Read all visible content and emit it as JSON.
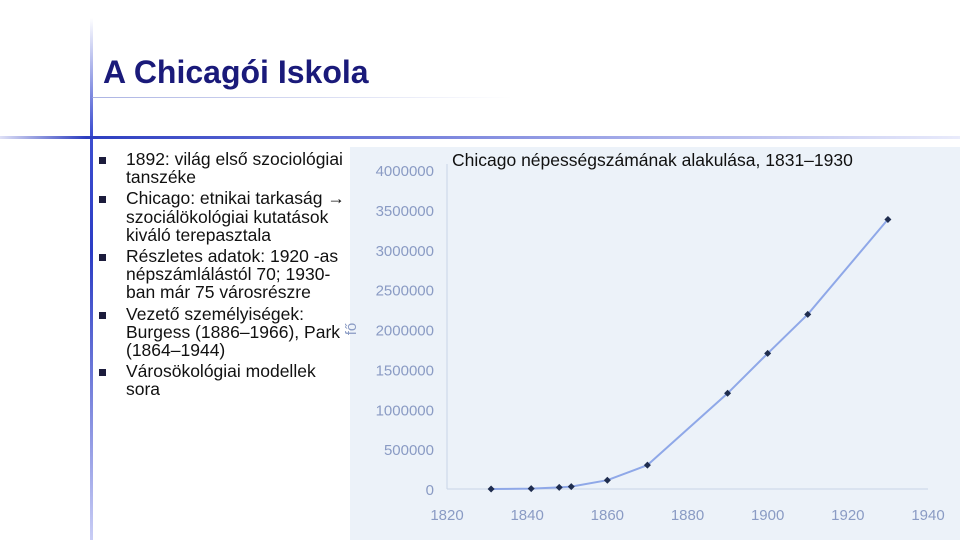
{
  "slide": {
    "title": "A Chicagói Iskola",
    "bullets": [
      "1892: világ első szociológiai tanszéke",
      "Chicago: etnikai tarkaság → szociálökológiai kutatások kiváló terepasztala",
      "Részletes adatok: 1920 -as népszámlálástól 70; 1930-ban már 75 városrészre",
      "Vezető személyiségek: Burgess (1886–1966), Park (1864–1944)",
      "Városökológiai modellek sora"
    ]
  },
  "colors": {
    "title": "#1a1a7a",
    "accent_line": "#2b3cc4",
    "chart_background": "#ecf2f9",
    "series_line": "#8fa8e8",
    "marker": "#1f2d4f",
    "tick_label": "#8a9bc4"
  },
  "chart_data": {
    "type": "line",
    "title": "Chicago népességszámának alakulása, 1831–1930",
    "xlabel": "",
    "ylabel": "fő",
    "xlim": [
      1820,
      1940
    ],
    "ylim": [
      0,
      4000000
    ],
    "x_ticks": [
      "1820",
      "1840",
      "1860",
      "1880",
      "1900",
      "1920",
      "1940"
    ],
    "y_ticks": [
      "0",
      "500000",
      "1000000",
      "1500000",
      "2000000",
      "2500000",
      "3000000",
      "3500000",
      "4000000"
    ],
    "grid": false,
    "legend": "none",
    "series": [
      {
        "x": [
          1831,
          1841,
          1848,
          1851,
          1860,
          1870,
          1890,
          1900,
          1910,
          1930
        ],
        "y": [
          0,
          5000,
          20000,
          30000,
          110000,
          300000,
          1200000,
          1700000,
          2190000,
          3380000
        ]
      }
    ]
  }
}
